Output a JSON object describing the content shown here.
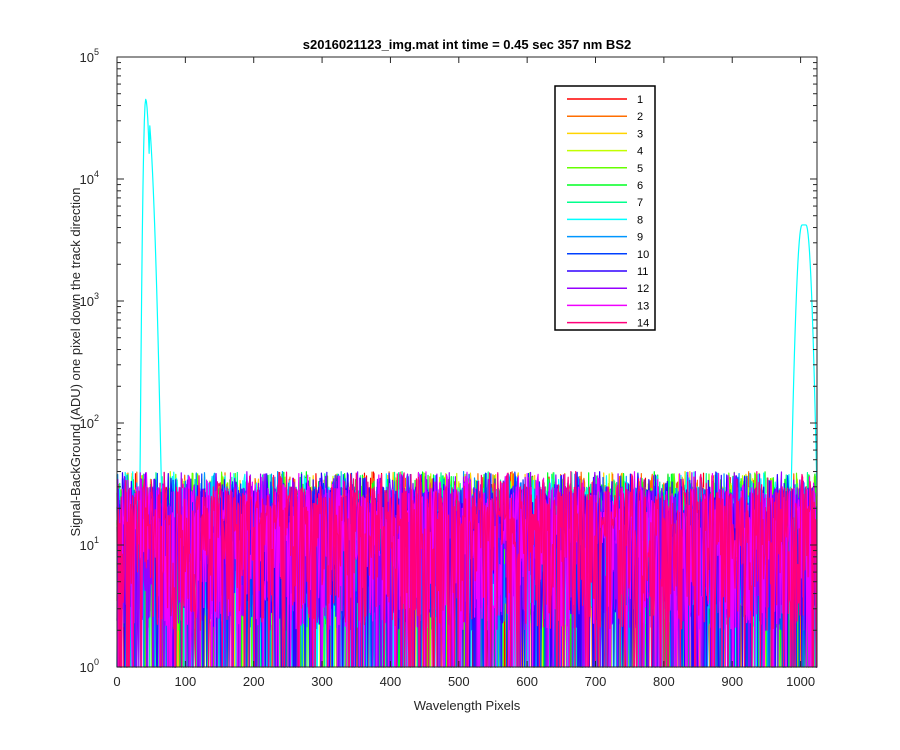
{
  "chart_data": {
    "type": "line",
    "title": "s2016021123_img.mat int time = 0.45 sec  357 nm BS2",
    "xlabel": "Wavelength Pixels",
    "ylabel": "Signal-BackGround (ADU) one pixel down the track direction",
    "xlim": [
      0,
      1024
    ],
    "ylim": [
      1,
      100000
    ],
    "yscale": "log",
    "grid": false,
    "legend_position": "top-right",
    "x_ticks": [
      "0",
      "100",
      "200",
      "300",
      "400",
      "500",
      "600",
      "700",
      "800",
      "900",
      "1000"
    ],
    "y_ticks": [
      {
        "base": "10",
        "exp": "0"
      },
      {
        "base": "10",
        "exp": "1"
      },
      {
        "base": "10",
        "exp": "2"
      },
      {
        "base": "10",
        "exp": "3"
      },
      {
        "base": "10",
        "exp": "4"
      },
      {
        "base": "10",
        "exp": "5"
      }
    ],
    "noise_floor": {
      "low": 1,
      "typical_high": 30,
      "max": 40
    },
    "peaks": [
      {
        "series": "8",
        "center_x": 42,
        "peak_y": 45000
      },
      {
        "series": "8",
        "center_x": 1005,
        "peak_y": 4200
      }
    ],
    "series": [
      {
        "name": "1",
        "color": "#ff0000"
      },
      {
        "name": "2",
        "color": "#ff6e00"
      },
      {
        "name": "3",
        "color": "#ffd400"
      },
      {
        "name": "4",
        "color": "#c2ff00"
      },
      {
        "name": "5",
        "color": "#66ff00"
      },
      {
        "name": "6",
        "color": "#00ff22"
      },
      {
        "name": "7",
        "color": "#00ff8c"
      },
      {
        "name": "8",
        "color": "#00ffff"
      },
      {
        "name": "9",
        "color": "#0096ff"
      },
      {
        "name": "10",
        "color": "#0040ff"
      },
      {
        "name": "11",
        "color": "#3000ff"
      },
      {
        "name": "12",
        "color": "#9600ff"
      },
      {
        "name": "13",
        "color": "#f000ff"
      },
      {
        "name": "14",
        "color": "#ff007a"
      }
    ]
  }
}
